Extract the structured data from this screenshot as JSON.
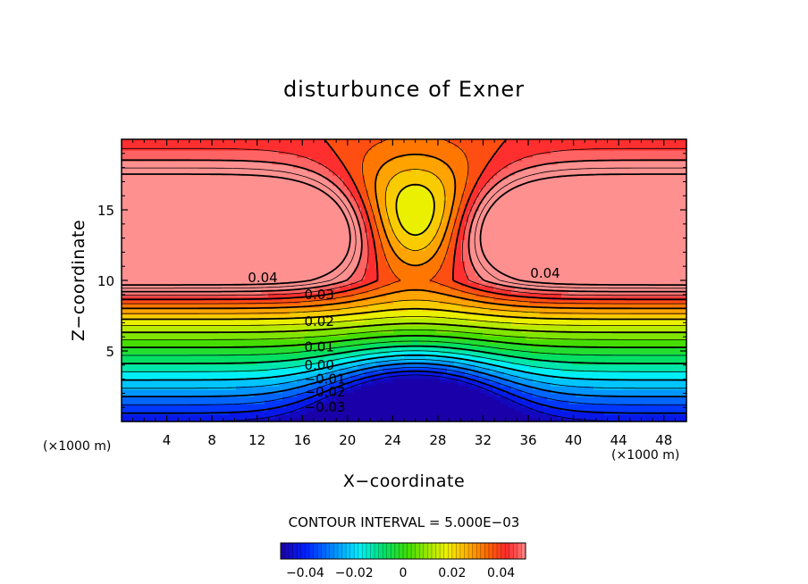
{
  "chart_data": {
    "type": "contour",
    "title": "disturbunce of Exner",
    "xlabel": "X−coordinate",
    "ylabel": "Z−coordinate",
    "x_unit_label": "(×1000 m)",
    "x_unit_label_right": "(×1000 m)",
    "xlim": [
      0,
      50
    ],
    "ylim": [
      0,
      20
    ],
    "x_ticks": [
      4,
      8,
      12,
      16,
      20,
      24,
      28,
      32,
      36,
      40,
      44,
      48
    ],
    "y_ticks": [
      5,
      10,
      15
    ],
    "contour_interval_text": "CONTOUR INTERVAL = 5.000E−03",
    "contour_interval": 0.005,
    "negative_contours": "dashed",
    "contour_labels": [
      {
        "text": "0.04",
        "x": 12.5,
        "y": 10.2
      },
      {
        "text": "0.04",
        "x": 37.5,
        "y": 10.5
      },
      {
        "text": "0.03",
        "x": 17.5,
        "y": 9.0
      },
      {
        "text": "0.02",
        "x": 17.5,
        "y": 7.1
      },
      {
        "text": "0.01",
        "x": 17.5,
        "y": 5.3
      },
      {
        "text": "0.00",
        "x": 17.5,
        "y": 4.0
      },
      {
        "text": "−0.01",
        "x": 18.0,
        "y": 3.0
      },
      {
        "text": "−0.02",
        "x": 18.0,
        "y": 2.1
      },
      {
        "text": "−0.03",
        "x": 18.0,
        "y": 1.0
      }
    ],
    "colorbar": {
      "range": [
        -0.05,
        0.05
      ],
      "ticks": [
        "−0.04",
        "−0.02",
        "0",
        "0.02",
        "0.04"
      ],
      "colormap": "rainbow (blue → red)"
    },
    "features": {
      "maxima_centers": [
        [
          4,
          13.5
        ],
        [
          46,
          13.5
        ]
      ],
      "minimum_center": [
        26,
        0.5
      ],
      "saddle": [
        26,
        15
      ]
    }
  }
}
